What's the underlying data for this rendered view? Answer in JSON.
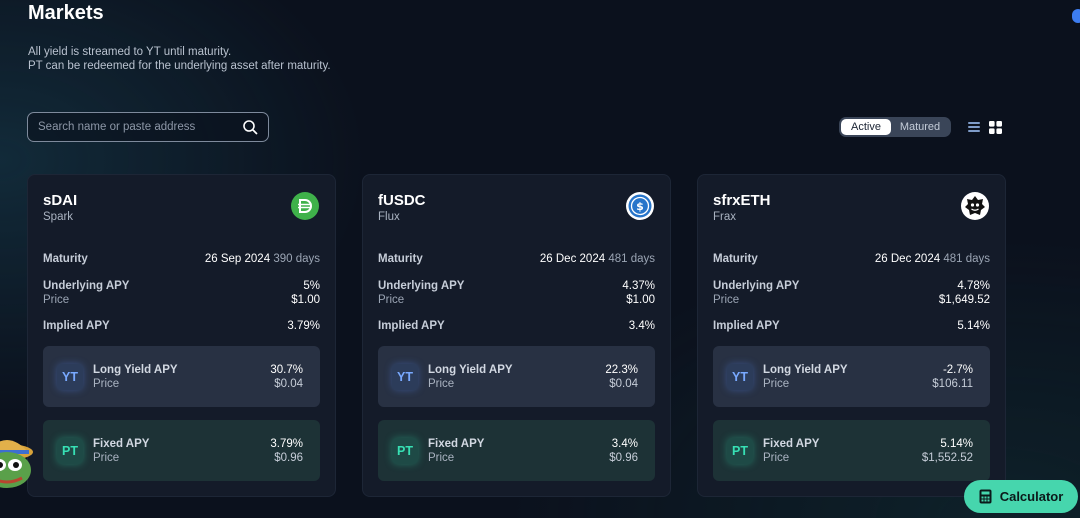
{
  "header": {
    "title": "Markets",
    "subtitle_line1": "All yield is streamed to YT until maturity.",
    "subtitle_line2": "PT can be redeemed for the underlying asset after maturity."
  },
  "search": {
    "placeholder": "Search name or paste address",
    "value": ""
  },
  "status_toggle": {
    "options": [
      "Active",
      "Matured"
    ],
    "selected": "Active"
  },
  "markets": [
    {
      "name": "sDAI",
      "protocol": "Spark",
      "logo_icon": "dai-icon",
      "logo_color": "#3fb14a",
      "maturity_label": "Maturity",
      "maturity_date": "26 Sep 2024",
      "maturity_days": "390 days",
      "underlying_apy_label": "Underlying APY",
      "underlying_apy": "5%",
      "price_label": "Price",
      "underlying_price": "$1.00",
      "implied_apy_label": "Implied APY",
      "implied_apy": "3.79%",
      "yt": {
        "badge": "YT",
        "label": "Long Yield APY",
        "price_label": "Price",
        "apy": "30.7%",
        "price": "$0.04"
      },
      "pt": {
        "badge": "PT",
        "label": "Fixed APY",
        "price_label": "Price",
        "apy": "3.79%",
        "price": "$0.96"
      }
    },
    {
      "name": "fUSDC",
      "protocol": "Flux",
      "logo_icon": "usdc-icon",
      "logo_color": "#2775ca",
      "maturity_label": "Maturity",
      "maturity_date": "26 Dec 2024",
      "maturity_days": "481 days",
      "underlying_apy_label": "Underlying APY",
      "underlying_apy": "4.37%",
      "price_label": "Price",
      "underlying_price": "$1.00",
      "implied_apy_label": "Implied APY",
      "implied_apy": "3.4%",
      "yt": {
        "badge": "YT",
        "label": "Long Yield APY",
        "price_label": "Price",
        "apy": "22.3%",
        "price": "$0.04"
      },
      "pt": {
        "badge": "PT",
        "label": "Fixed APY",
        "price_label": "Price",
        "apy": "3.4%",
        "price": "$0.96"
      }
    },
    {
      "name": "sfrxETH",
      "protocol": "Frax",
      "logo_icon": "frax-icon",
      "logo_color": "#ffffff",
      "maturity_label": "Maturity",
      "maturity_date": "26 Dec 2024",
      "maturity_days": "481 days",
      "underlying_apy_label": "Underlying APY",
      "underlying_apy": "4.78%",
      "price_label": "Price",
      "underlying_price": "$1,649.52",
      "implied_apy_label": "Implied APY",
      "implied_apy": "5.14%",
      "yt": {
        "badge": "YT",
        "label": "Long Yield APY",
        "price_label": "Price",
        "apy": "-2.7%",
        "price": "$106.11"
      },
      "pt": {
        "badge": "PT",
        "label": "Fixed APY",
        "price_label": "Price",
        "apy": "5.14%",
        "price": "$1,552.52"
      }
    }
  ],
  "calculator_button": {
    "label": "Calculator",
    "icon": "calculator-icon"
  },
  "colors": {
    "accent": "#46d6ad",
    "background": "#0b111d",
    "card": "#141b29"
  }
}
